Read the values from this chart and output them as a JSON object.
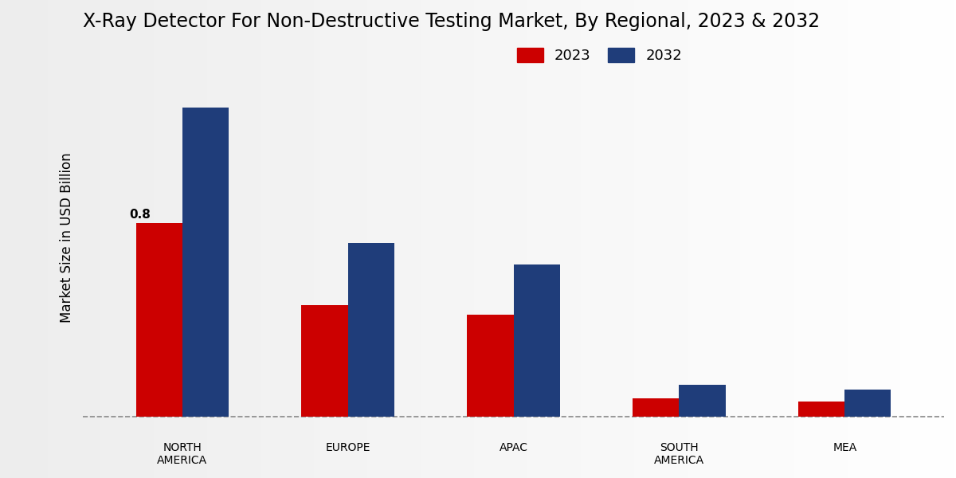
{
  "title": "X-Ray Detector For Non-Destructive Testing Market, By Regional, 2023 & 2032",
  "ylabel": "Market Size in USD Billion",
  "categories": [
    "NORTH\nAMERICA",
    "EUROPE",
    "APAC",
    "SOUTH\nAMERICA",
    "MEA"
  ],
  "values_2023": [
    0.8,
    0.46,
    0.42,
    0.075,
    0.06
  ],
  "values_2032": [
    1.28,
    0.72,
    0.63,
    0.13,
    0.11
  ],
  "color_2023": "#cc0000",
  "color_2032": "#1f3d7a",
  "annotation_value": "0.8",
  "annotation_region_idx": 0,
  "bar_width": 0.28,
  "legend_labels": [
    "2023",
    "2032"
  ],
  "ylim": [
    -0.07,
    1.55
  ],
  "dashed_line_y": 0.0,
  "title_fontsize": 17,
  "axis_label_fontsize": 12,
  "tick_fontsize": 10
}
